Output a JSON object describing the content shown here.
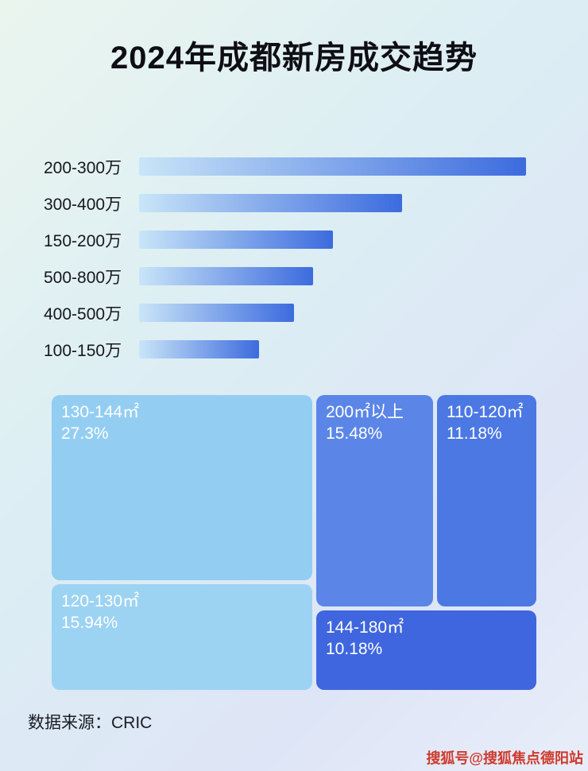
{
  "page": {
    "title": "2024年成都新房成交趋势",
    "source_note": "数据来源：CRIC",
    "watermark": "搜狐号@搜狐焦点德阳站"
  },
  "colors": {
    "bar_gradient_start": "#c9e5f8",
    "bar_gradient_end": "#3c6bde",
    "title_text": "#0e0e14",
    "label_text": "#17171d",
    "watermark_text": "#cf3a2c"
  },
  "chart_data": [
    {
      "type": "bar",
      "orientation": "horizontal",
      "title": "",
      "xlabel": "",
      "ylabel": "",
      "categories": [
        "200-300万",
        "300-400万",
        "150-200万",
        "500-800万",
        "400-500万",
        "100-150万"
      ],
      "values": [
        100,
        68,
        50,
        45,
        40,
        31
      ],
      "value_note": "relative bar length, longest bar = 100; no numeric axis shown",
      "grid": false,
      "legend": false
    },
    {
      "type": "treemap",
      "title": "",
      "blocks": [
        {
          "label": "130-144㎡",
          "value_pct": 27.3,
          "pct_label": "27.3%",
          "color": "#93cef2",
          "position": "top-left"
        },
        {
          "label": "200㎡以上",
          "value_pct": 15.48,
          "pct_label": "15.48%",
          "color": "#5b86e8",
          "position": "top-middle"
        },
        {
          "label": "110-120㎡",
          "value_pct": 11.18,
          "pct_label": "11.18%",
          "color": "#4c78e4",
          "position": "top-right"
        },
        {
          "label": "120-130㎡",
          "value_pct": 15.94,
          "pct_label": "15.94%",
          "color": "#9cd3f3",
          "position": "bottom-left"
        },
        {
          "label": "144-180㎡",
          "value_pct": 10.18,
          "pct_label": "10.18%",
          "color": "#3f66df",
          "position": "bottom-right"
        }
      ]
    }
  ]
}
